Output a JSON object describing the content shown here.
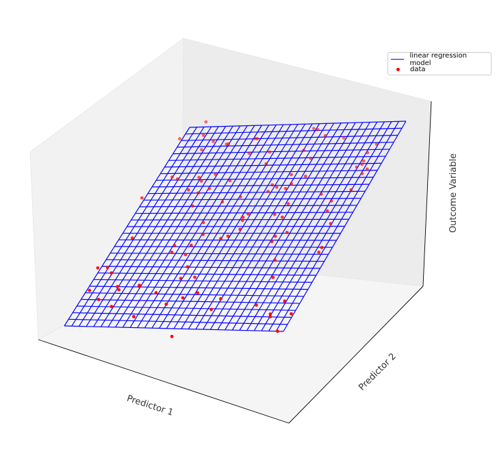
{
  "chart_data": {
    "type": "scatter",
    "title": "",
    "xlabel": "Predictor 1",
    "ylabel": "Predictor 2",
    "zlabel": "Outcome Variable",
    "grid": false,
    "legend_position": "top-right",
    "series": [
      {
        "name": "linear regression model",
        "kind": "surface",
        "color": "#0000ff",
        "grid_lines_per_axis": 30
      },
      {
        "name": "data",
        "kind": "scatter",
        "color": "#ff0000",
        "point_count": 100
      }
    ]
  },
  "legend": {
    "model_label": "linear regression model",
    "data_label": "data"
  }
}
